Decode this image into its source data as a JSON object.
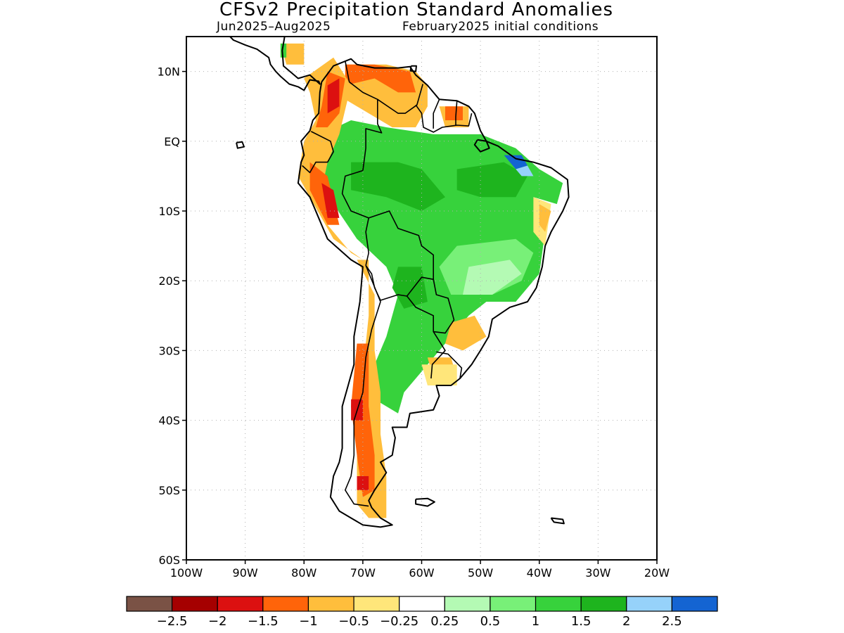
{
  "header": {
    "title": "CFSv2 Precipitation Standard Anomalies",
    "period": "Jun2025–Aug2025",
    "init": "February2025 initial conditions"
  },
  "map": {
    "lon_range": [
      -100,
      -20
    ],
    "lat_range": [
      -60,
      15
    ],
    "lon_ticks": [
      {
        "value": -100,
        "label": "100W"
      },
      {
        "value": -90,
        "label": "90W"
      },
      {
        "value": -80,
        "label": "80W"
      },
      {
        "value": -70,
        "label": "70W"
      },
      {
        "value": -60,
        "label": "60W"
      },
      {
        "value": -50,
        "label": "50W"
      },
      {
        "value": -40,
        "label": "40W"
      },
      {
        "value": -30,
        "label": "30W"
      },
      {
        "value": -20,
        "label": "20W"
      }
    ],
    "lat_ticks": [
      {
        "value": 10,
        "label": "10N"
      },
      {
        "value": 0,
        "label": "EQ"
      },
      {
        "value": -10,
        "label": "10S"
      },
      {
        "value": -20,
        "label": "20S"
      },
      {
        "value": -30,
        "label": "30S"
      },
      {
        "value": -40,
        "label": "40S"
      },
      {
        "value": -50,
        "label": "50S"
      },
      {
        "value": -60,
        "label": "60S"
      }
    ],
    "grid": "dotted",
    "anomaly_regions": [
      {
        "category": "pos_1_1.5",
        "lonlat": [
          [
            -77,
            1
          ],
          [
            -72,
            3
          ],
          [
            -66,
            2
          ],
          [
            -58,
            1
          ],
          [
            -50,
            1
          ],
          [
            -44,
            -1
          ],
          [
            -40,
            -4
          ],
          [
            -36,
            -6
          ],
          [
            -37,
            -9
          ],
          [
            -41,
            -8
          ],
          [
            -39,
            -13
          ],
          [
            -40,
            -19
          ],
          [
            -44,
            -23
          ],
          [
            -49,
            -23
          ],
          [
            -52,
            -25
          ],
          [
            -55,
            -28
          ],
          [
            -57,
            -30
          ],
          [
            -60,
            -33
          ],
          [
            -63,
            -36
          ],
          [
            -64,
            -39
          ],
          [
            -68,
            -37
          ],
          [
            -68,
            -32
          ],
          [
            -66,
            -28
          ],
          [
            -64,
            -22
          ],
          [
            -66,
            -18
          ],
          [
            -71,
            -14
          ],
          [
            -75,
            -9
          ],
          [
            -77,
            -4
          ]
        ]
      },
      {
        "category": "pos_0.5_1",
        "lonlat": [
          [
            -54,
            -15
          ],
          [
            -44,
            -14
          ],
          [
            -41,
            -16
          ],
          [
            -43,
            -20
          ],
          [
            -48,
            -22
          ],
          [
            -55,
            -22
          ],
          [
            -57,
            -18
          ]
        ]
      },
      {
        "category": "pos_0.25_0.5",
        "lonlat": [
          [
            -52,
            -18
          ],
          [
            -45,
            -17
          ],
          [
            -43,
            -19
          ],
          [
            -48,
            -22
          ],
          [
            -53,
            -22
          ]
        ]
      },
      {
        "category": "pos_1.5_2",
        "lonlat": [
          [
            -72,
            -3
          ],
          [
            -64,
            -3
          ],
          [
            -60,
            -4
          ],
          [
            -56,
            -8
          ],
          [
            -60,
            -10
          ],
          [
            -66,
            -8
          ],
          [
            -72,
            -7
          ]
        ]
      },
      {
        "category": "pos_1.5_2",
        "lonlat": [
          [
            -64,
            -18
          ],
          [
            -60,
            -18
          ],
          [
            -59,
            -23
          ],
          [
            -63,
            -24
          ],
          [
            -65,
            -21
          ]
        ]
      },
      {
        "category": "pos_1.5_2",
        "lonlat": [
          [
            -54,
            -4
          ],
          [
            -46,
            -3
          ],
          [
            -42,
            -5
          ],
          [
            -44,
            -8
          ],
          [
            -50,
            -8
          ],
          [
            -54,
            -7
          ]
        ]
      },
      {
        "category": "pos_2.5_plus",
        "lonlat": [
          [
            -46,
            -2
          ],
          [
            -43,
            -2
          ],
          [
            -42,
            -3.5
          ],
          [
            -44,
            -4
          ]
        ]
      },
      {
        "category": "pos_2_2.5",
        "lonlat": [
          [
            -44,
            -4
          ],
          [
            -42,
            -3.5
          ],
          [
            -41,
            -5
          ],
          [
            -43,
            -5
          ]
        ]
      },
      {
        "category": "neg_0.25_0.5",
        "lonlat": [
          [
            -41,
            -8
          ],
          [
            -38,
            -9
          ],
          [
            -39,
            -15
          ],
          [
            -41,
            -13
          ]
        ]
      },
      {
        "category": "neg_0.5_1",
        "lonlat": [
          [
            -40,
            -9
          ],
          [
            -38,
            -10
          ],
          [
            -39,
            -13
          ],
          [
            -40,
            -12
          ]
        ]
      },
      {
        "category": "neg_0.5_1",
        "lonlat": [
          [
            -73,
            11
          ],
          [
            -66,
            11
          ],
          [
            -61,
            10
          ],
          [
            -59,
            8
          ],
          [
            -59,
            5
          ],
          [
            -61,
            2
          ],
          [
            -65,
            2
          ],
          [
            -69,
            4
          ],
          [
            -73,
            6
          ]
        ]
      },
      {
        "category": "neg_1_1.5",
        "lonlat": [
          [
            -73,
            11
          ],
          [
            -68,
            11
          ],
          [
            -62,
            10
          ],
          [
            -61,
            7
          ],
          [
            -64,
            7
          ],
          [
            -68,
            9
          ],
          [
            -73,
            8
          ]
        ]
      },
      {
        "category": "neg_0.5_1",
        "lonlat": [
          [
            -80,
            9
          ],
          [
            -75,
            12
          ],
          [
            -72,
            8
          ],
          [
            -74,
            1
          ],
          [
            -76,
            -3
          ],
          [
            -77,
            -7
          ],
          [
            -76,
            -12
          ],
          [
            -72,
            -16
          ],
          [
            -70,
            -17
          ],
          [
            -75,
            -14
          ],
          [
            -79,
            -8
          ],
          [
            -81,
            -5
          ],
          [
            -80,
            0
          ],
          [
            -78,
            3
          ],
          [
            -79,
            7
          ]
        ]
      },
      {
        "category": "neg_1_1.5",
        "lonlat": [
          [
            -76,
            10
          ],
          [
            -73,
            9
          ],
          [
            -74,
            4
          ],
          [
            -76,
            2
          ],
          [
            -78,
            2
          ],
          [
            -77,
            5
          ]
        ]
      },
      {
        "category": "neg_1_1.5",
        "lonlat": [
          [
            -79,
            -3
          ],
          [
            -76,
            -5
          ],
          [
            -74,
            -12
          ],
          [
            -76,
            -12
          ],
          [
            -79,
            -7
          ]
        ]
      },
      {
        "category": "neg_1.5_2",
        "lonlat": [
          [
            -76,
            8
          ],
          [
            -74,
            9
          ],
          [
            -74,
            5
          ],
          [
            -76,
            4
          ]
        ]
      },
      {
        "category": "neg_1.5_2",
        "lonlat": [
          [
            -77,
            -6
          ],
          [
            -75,
            -7
          ],
          [
            -74,
            -11
          ],
          [
            -76,
            -11
          ]
        ]
      },
      {
        "category": "neg_0.5_1",
        "lonlat": [
          [
            -57,
            5
          ],
          [
            -52,
            5
          ],
          [
            -52,
            2
          ],
          [
            -56,
            2
          ]
        ]
      },
      {
        "category": "neg_1_1.5",
        "lonlat": [
          [
            -56,
            5
          ],
          [
            -53,
            5
          ],
          [
            -53,
            3
          ],
          [
            -56,
            3
          ]
        ]
      },
      {
        "category": "neg_0.5_1",
        "lonlat": [
          [
            -84,
            14
          ],
          [
            -80,
            14
          ],
          [
            -80,
            11
          ],
          [
            -83,
            11
          ]
        ]
      },
      {
        "category": "pos_1_1.5",
        "lonlat": [
          [
            -84,
            14
          ],
          [
            -83,
            14
          ],
          [
            -83,
            12
          ],
          [
            -84,
            12
          ]
        ]
      },
      {
        "category": "neg_0.5_1",
        "lonlat": [
          [
            -71,
            -17
          ],
          [
            -69,
            -17
          ],
          [
            -69,
            -25
          ],
          [
            -70,
            -33
          ],
          [
            -70,
            -40
          ],
          [
            -71,
            -45
          ],
          [
            -71,
            -52
          ],
          [
            -69,
            -54
          ],
          [
            -66,
            -54
          ],
          [
            -66,
            -48
          ],
          [
            -67,
            -42
          ],
          [
            -67,
            -36
          ],
          [
            -68,
            -30
          ],
          [
            -68,
            -22
          ]
        ]
      },
      {
        "category": "neg_1_1.5",
        "lonlat": [
          [
            -71,
            -29
          ],
          [
            -69,
            -29
          ],
          [
            -69,
            -38
          ],
          [
            -68,
            -45
          ],
          [
            -68,
            -50
          ],
          [
            -70,
            -51
          ],
          [
            -71,
            -45
          ],
          [
            -72,
            -38
          ]
        ]
      },
      {
        "category": "neg_1.5_2",
        "lonlat": [
          [
            -72,
            -37
          ],
          [
            -70,
            -37
          ],
          [
            -70,
            -40
          ],
          [
            -72,
            -40
          ]
        ]
      },
      {
        "category": "neg_1.5_2",
        "lonlat": [
          [
            -71,
            -48
          ],
          [
            -69,
            -48
          ],
          [
            -69,
            -50
          ],
          [
            -71,
            -50
          ]
        ]
      },
      {
        "category": "neg_0.5_1",
        "lonlat": [
          [
            -55,
            -26
          ],
          [
            -51,
            -25
          ],
          [
            -49,
            -28
          ],
          [
            -53,
            -30
          ],
          [
            -56,
            -29
          ]
        ]
      },
      {
        "category": "neg_0.5_1",
        "lonlat": [
          [
            -59,
            -31
          ],
          [
            -55,
            -31
          ],
          [
            -54,
            -34
          ],
          [
            -58,
            -34
          ]
        ]
      },
      {
        "category": "neg_0.25_0.5",
        "lonlat": [
          [
            -60,
            -32
          ],
          [
            -54,
            -32
          ],
          [
            -54,
            -35
          ],
          [
            -59,
            -35
          ]
        ]
      }
    ]
  },
  "colorbar": {
    "colors": [
      "#7a5245",
      "#a50000",
      "#dc1010",
      "#ff640a",
      "#ffbe3c",
      "#ffe67a",
      "#ffffff",
      "#b4fab4",
      "#78f078",
      "#37d23c",
      "#1eb41e",
      "#96d2fa",
      "#1464d2"
    ],
    "labels": [
      "-2.5",
      "-2",
      "-1.5",
      "-1",
      "-0.5",
      "-0.25",
      "0.25",
      "0.5",
      "1",
      "1.5",
      "2",
      "2.5"
    ]
  },
  "categories": {
    "neg_1.5_2": "#dc1010",
    "neg_1_1.5": "#ff640a",
    "neg_0.5_1": "#ffbe3c",
    "neg_0.25_0.5": "#ffe67a",
    "pos_0.25_0.5": "#b4fab4",
    "pos_0.5_1": "#78f078",
    "pos_1_1.5": "#37d23c",
    "pos_1.5_2": "#1eb41e",
    "pos_2_2.5": "#96d2fa",
    "pos_2.5_plus": "#1464d2"
  }
}
